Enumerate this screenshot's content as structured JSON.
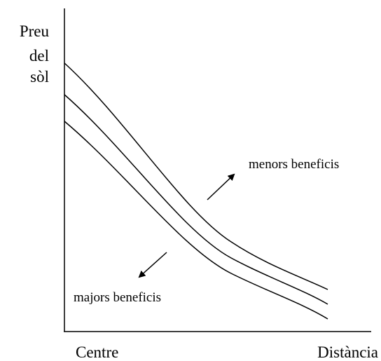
{
  "y_axis_label": [
    "Preu",
    "del",
    "sòl"
  ],
  "x_axis": {
    "start": "Centre",
    "end": "Distància"
  },
  "annotations": {
    "upper": "menors beneficis",
    "lower": "majors beneficis"
  }
}
